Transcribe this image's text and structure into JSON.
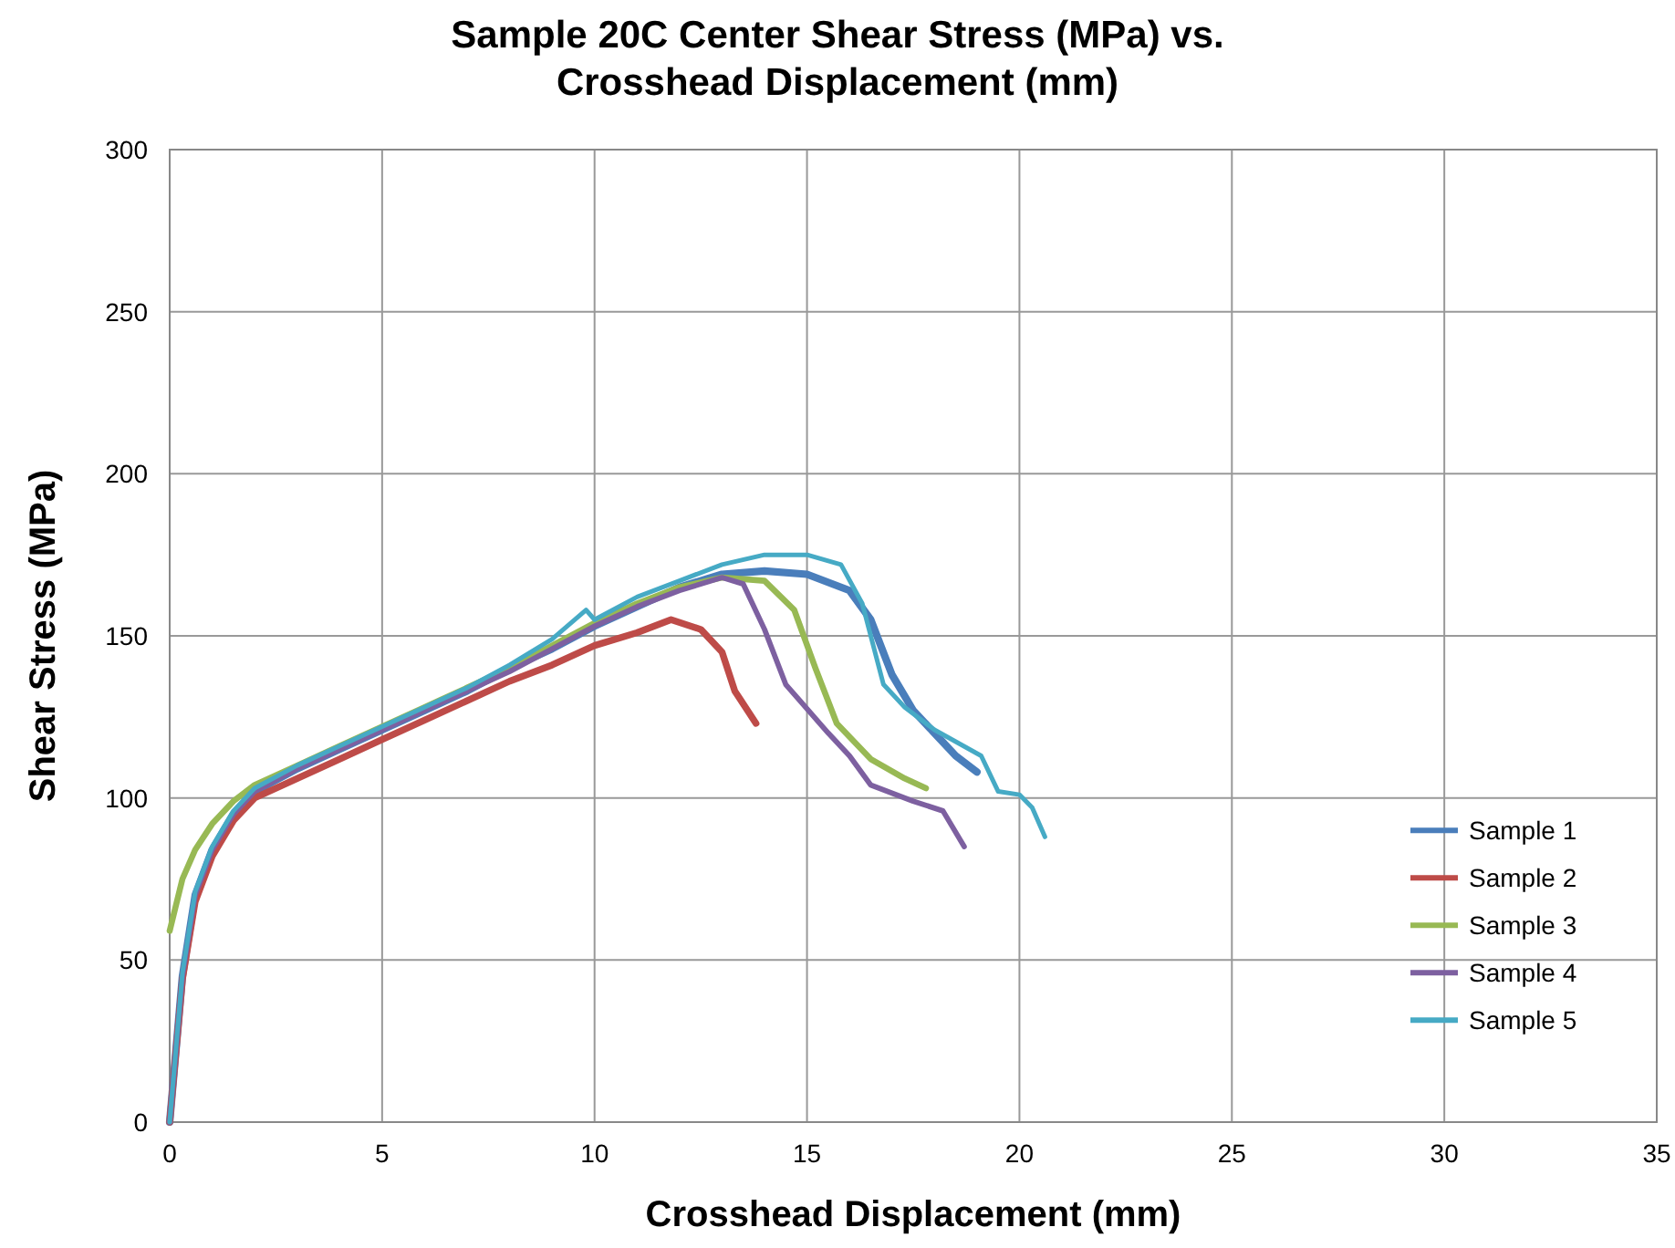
{
  "chart_data": {
    "type": "line",
    "title": "Sample 20C Center Shear Stress (MPa) vs. Crosshead Displacement (mm)",
    "xlabel": "Crosshead Displacement (mm)",
    "ylabel": "Shear Stress (MPa)",
    "xlim": [
      0,
      35
    ],
    "xticks": [
      0,
      5,
      10,
      15,
      20,
      25,
      30,
      35
    ],
    "ylim": [
      0,
      300
    ],
    "yticks": [
      0,
      50,
      100,
      150,
      200,
      250,
      300
    ],
    "grid": true,
    "legend": "right",
    "marker": "none",
    "line_style": "solid",
    "series": [
      {
        "name": "Sample 1",
        "color": "#4a7ebb",
        "x": [
          0,
          0.3,
          0.6,
          1,
          1.5,
          2,
          3,
          4,
          5,
          6,
          7,
          8,
          9,
          10,
          11,
          12,
          13,
          14,
          15,
          16,
          16.5,
          17,
          17.5,
          18,
          18.5,
          19
        ],
        "values": [
          0,
          45,
          70,
          84,
          95,
          102,
          109,
          115,
          121,
          127,
          133,
          140,
          146,
          153,
          159,
          165,
          169,
          170,
          169,
          164,
          155,
          138,
          127,
          120,
          113,
          108
        ]
      },
      {
        "name": "Sample 2",
        "color": "#be4b48",
        "x": [
          0,
          0.3,
          0.6,
          1,
          1.5,
          2,
          3,
          4,
          5,
          6,
          7,
          8,
          9,
          10,
          11,
          11.8,
          12.5,
          13,
          13.3,
          13.8
        ],
        "values": [
          0,
          44,
          68,
          82,
          93,
          100,
          106,
          112,
          118,
          124,
          130,
          136,
          141,
          147,
          151,
          155,
          152,
          145,
          133,
          123
        ]
      },
      {
        "name": "Sample 3",
        "color": "#98b954",
        "x": [
          0,
          0.3,
          0.6,
          1,
          1.5,
          2,
          3,
          4,
          5,
          6,
          7,
          8,
          9,
          10,
          11,
          12,
          13,
          14,
          14.7,
          15.2,
          15.7,
          16.5,
          17.3,
          17.8
        ],
        "values": [
          59,
          75,
          84,
          92,
          99,
          104,
          110,
          116,
          122,
          128,
          134,
          140,
          147,
          154,
          160,
          165,
          168,
          167,
          158,
          140,
          123,
          112,
          106,
          103
        ]
      },
      {
        "name": "Sample 4",
        "color": "#7d60a0",
        "x": [
          0,
          0.3,
          0.6,
          1,
          1.5,
          2,
          3,
          4,
          5,
          6,
          7,
          8,
          9,
          10,
          11,
          12,
          13,
          13.5,
          14,
          14.5,
          15.5,
          16,
          16.5,
          17.5,
          18.2,
          18.7
        ],
        "values": [
          0,
          45,
          70,
          84,
          95,
          102,
          109,
          115,
          121,
          127,
          133,
          139,
          146,
          153,
          159,
          164,
          168,
          166,
          152,
          135,
          120,
          113,
          104,
          99,
          96,
          85
        ]
      },
      {
        "name": "Sample 5",
        "color": "#46aac5",
        "x": [
          0,
          0.3,
          0.6,
          1,
          1.5,
          2,
          3,
          4,
          5,
          6,
          7,
          8,
          9,
          9.8,
          10,
          11,
          12,
          13,
          14,
          15,
          15.8,
          16.3,
          16.8,
          17.3,
          18,
          19.1,
          19.5,
          20,
          20.3,
          20.6
        ],
        "values": [
          0,
          46,
          71,
          85,
          96,
          103,
          110,
          116,
          122,
          128,
          134,
          141,
          149,
          158,
          155,
          162,
          167,
          172,
          175,
          175,
          172,
          160,
          135,
          128,
          121,
          113,
          102,
          101,
          97,
          88
        ]
      }
    ]
  }
}
